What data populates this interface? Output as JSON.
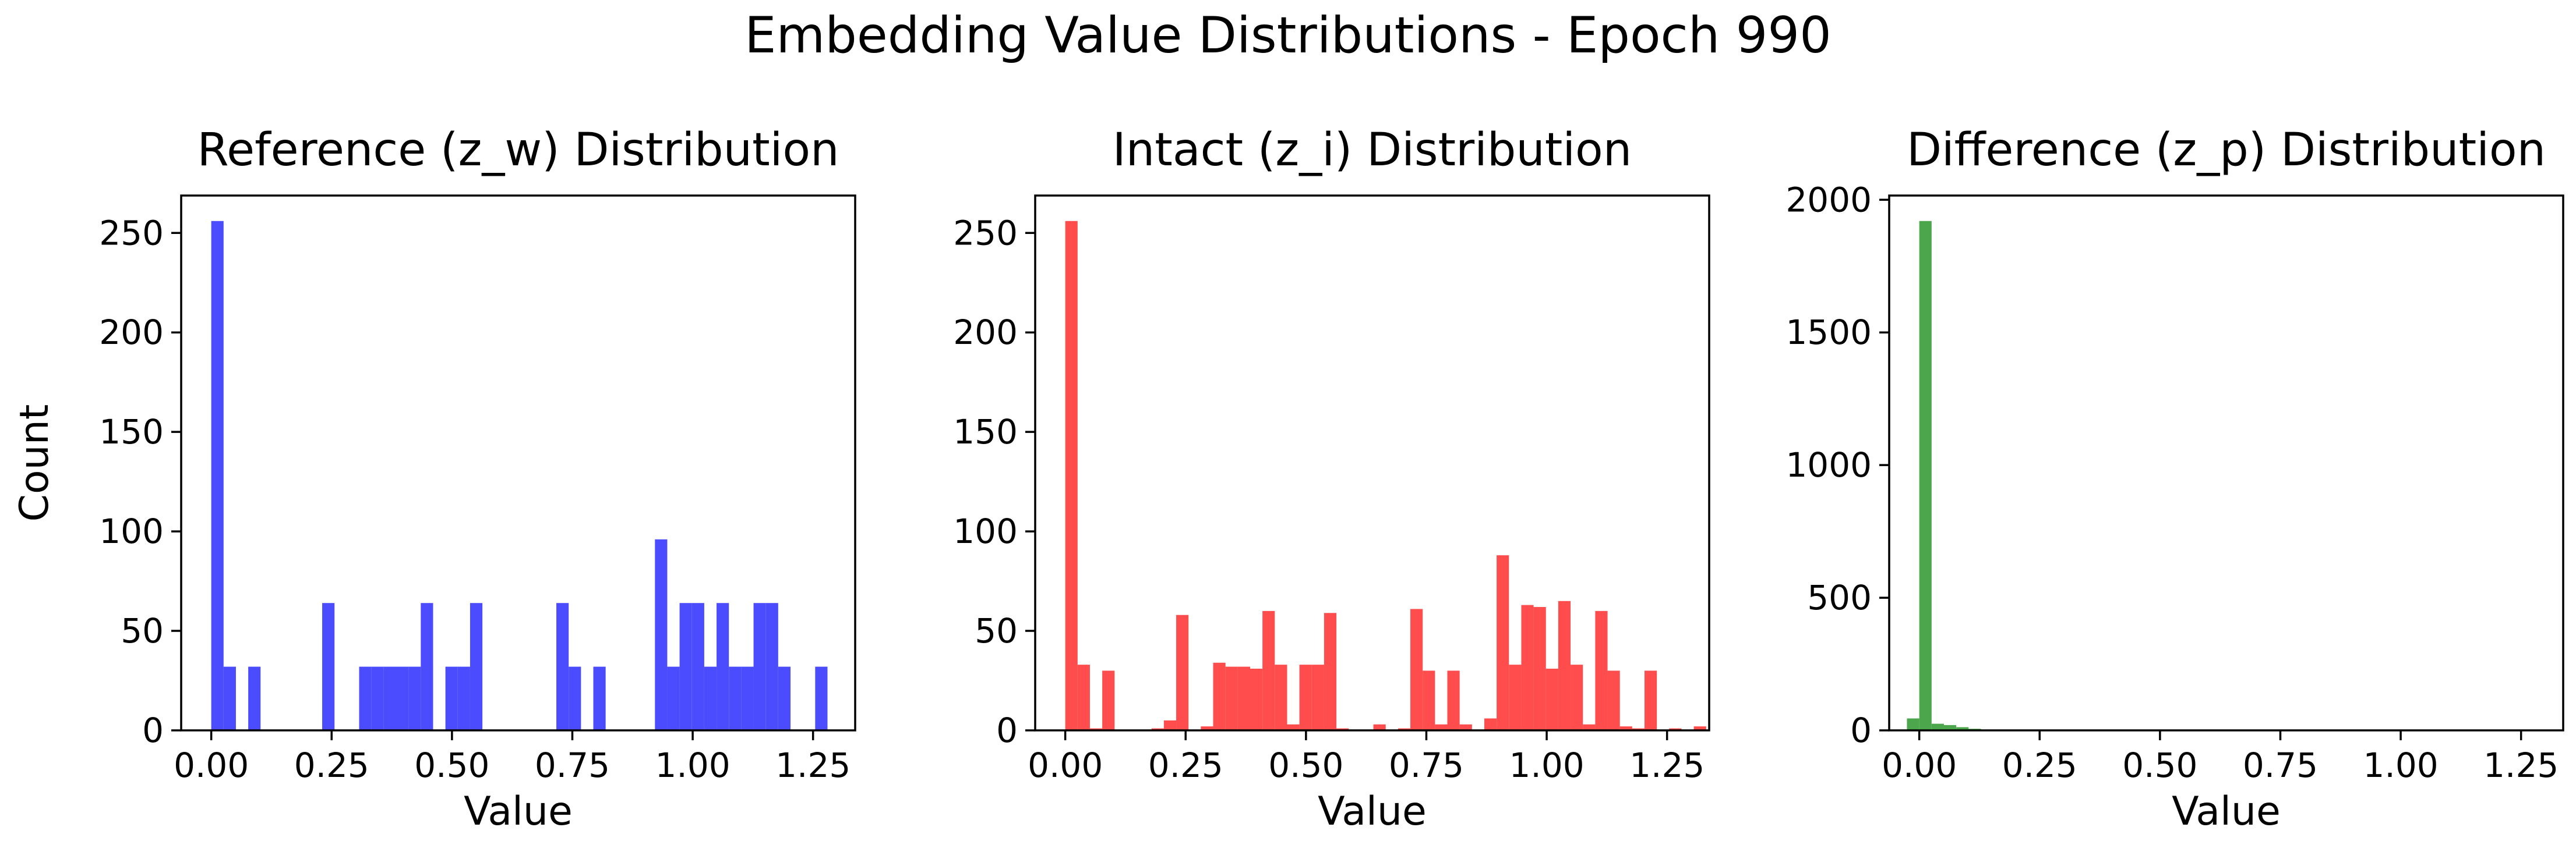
{
  "figure_title": "Embedding Value Distributions - Epoch 990",
  "chart_data": [
    {
      "type": "bar",
      "title": "Reference (z_w) Distribution",
      "xlabel": "Value",
      "ylabel": "Count",
      "color": "#4c4cff",
      "xlim": [
        -0.0625,
        1.3375
      ],
      "ylim": [
        0,
        268.8
      ],
      "xticks": [
        0.0,
        0.25,
        0.5,
        0.75,
        1.0,
        1.25
      ],
      "xtick_labels": [
        "0.00",
        "0.25",
        "0.50",
        "0.75",
        "1.00",
        "1.25"
      ],
      "yticks": [
        0,
        50,
        100,
        150,
        200,
        250
      ],
      "ytick_labels": [
        "0",
        "50",
        "100",
        "150",
        "200",
        "250"
      ],
      "bin_width": 0.0256,
      "bin_starts": [
        0.0,
        0.0256,
        0.0768,
        0.2304,
        0.3072,
        0.3328,
        0.3584,
        0.384,
        0.4096,
        0.4352,
        0.4864,
        0.512,
        0.5376,
        0.7168,
        0.7424,
        0.7936,
        0.9216,
        0.9472,
        0.9728,
        0.9984,
        1.024,
        1.0496,
        1.0752,
        1.1008,
        1.1264,
        1.152,
        1.1776,
        1.2544
      ],
      "counts": [
        256,
        32,
        32,
        64,
        32,
        32,
        32,
        32,
        32,
        64,
        32,
        32,
        64,
        64,
        32,
        32,
        96,
        32,
        64,
        64,
        32,
        64,
        32,
        32,
        64,
        64,
        32,
        32
      ]
    },
    {
      "type": "bar",
      "title": "Intact (z_i) Distribution",
      "xlabel": "Value",
      "ylabel": "",
      "color": "#ff4c4c",
      "xlim": [
        -0.0625,
        1.3375
      ],
      "ylim": [
        0,
        268.8
      ],
      "xticks": [
        0.0,
        0.25,
        0.5,
        0.75,
        1.0,
        1.25
      ],
      "xtick_labels": [
        "0.00",
        "0.25",
        "0.50",
        "0.75",
        "1.00",
        "1.25"
      ],
      "yticks": [
        0,
        50,
        100,
        150,
        200,
        250
      ],
      "ytick_labels": [
        "0",
        "50",
        "100",
        "150",
        "200",
        "250"
      ],
      "bin_width": 0.0256,
      "bin_starts": [
        0.0,
        0.0256,
        0.0512,
        0.0768,
        0.1792,
        0.2048,
        0.2304,
        0.2816,
        0.3072,
        0.3328,
        0.3584,
        0.384,
        0.4096,
        0.4352,
        0.4608,
        0.4864,
        0.512,
        0.5376,
        0.5632,
        0.64,
        0.6912,
        0.7168,
        0.7424,
        0.768,
        0.7936,
        0.8192,
        0.8704,
        0.896,
        0.9216,
        0.9472,
        0.9728,
        0.9984,
        1.024,
        1.0496,
        1.0752,
        1.1008,
        1.1264,
        1.152,
        1.1776,
        1.2032,
        1.2544,
        1.3056
      ],
      "counts": [
        256,
        33,
        1,
        30,
        1,
        5,
        58,
        2,
        34,
        32,
        32,
        31,
        60,
        33,
        3,
        33,
        33,
        59,
        1,
        3,
        1,
        61,
        30,
        3,
        30,
        3,
        6,
        88,
        33,
        63,
        62,
        31,
        65,
        33,
        3,
        60,
        30,
        2,
        1,
        30,
        1,
        2
      ]
    },
    {
      "type": "bar",
      "title": "Difference (z_p) Distribution",
      "xlabel": "Value",
      "ylabel": "",
      "color": "#4ca64c",
      "xlim": [
        -0.0625,
        1.3375
      ],
      "ylim": [
        0,
        2016
      ],
      "xticks": [
        0.0,
        0.25,
        0.5,
        0.75,
        1.0,
        1.25
      ],
      "xtick_labels": [
        "0.00",
        "0.25",
        "0.50",
        "0.75",
        "1.00",
        "1.25"
      ],
      "yticks": [
        0,
        500,
        1000,
        1500,
        2000
      ],
      "ytick_labels": [
        "0",
        "500",
        "1000",
        "1500",
        "2000"
      ],
      "bin_width": 0.0256,
      "bin_starts": [
        -0.0256,
        0.0,
        0.0256,
        0.0512,
        0.0768,
        0.1024,
        0.128,
        0.1536,
        0.1792
      ],
      "counts": [
        45,
        1920,
        25,
        20,
        12,
        6,
        3,
        2,
        1
      ]
    }
  ]
}
